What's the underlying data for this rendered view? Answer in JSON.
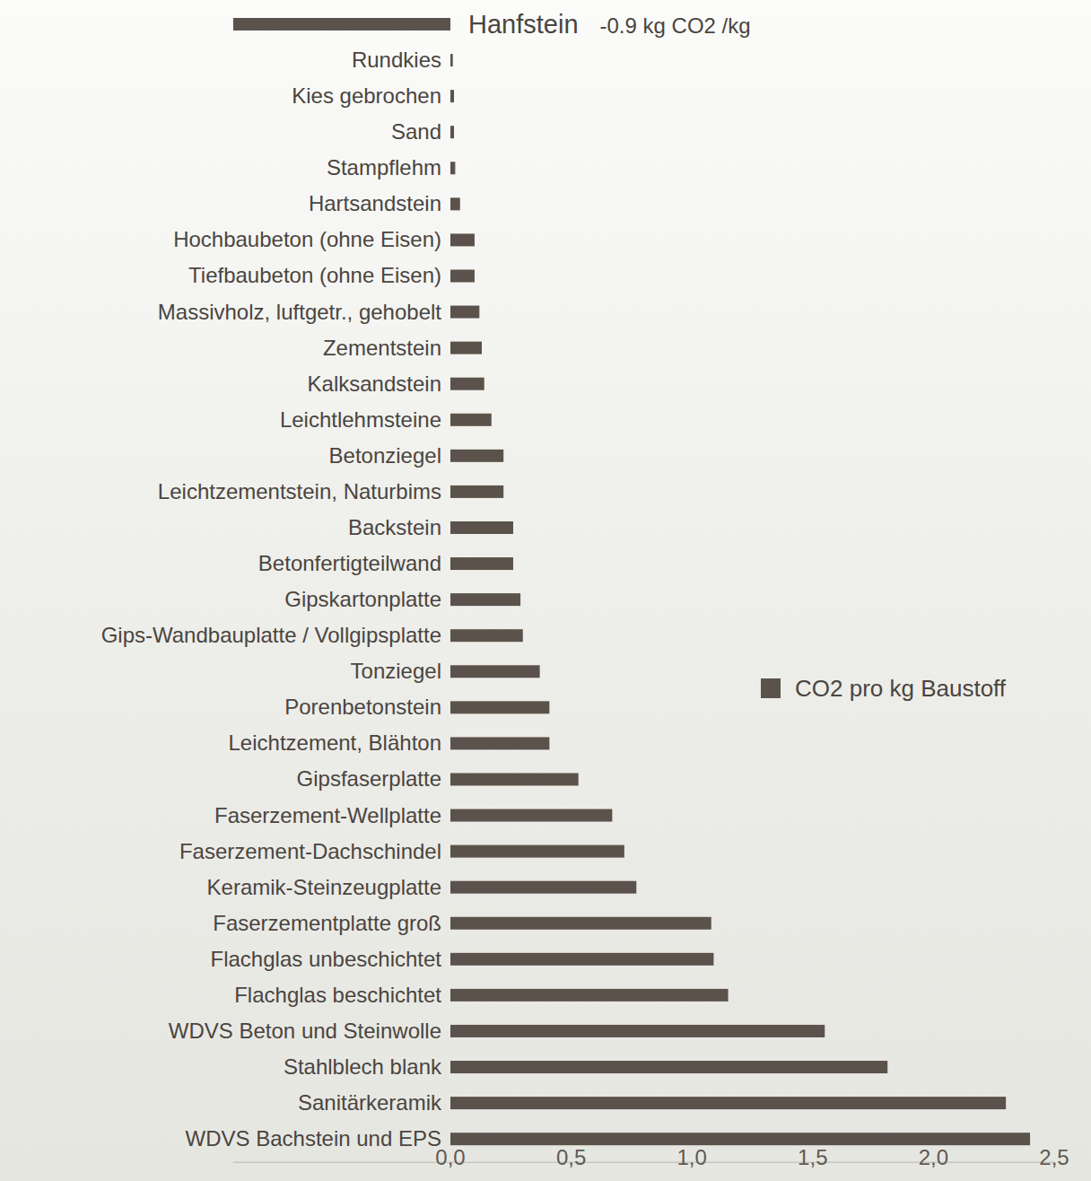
{
  "chart_data": {
    "type": "bar",
    "orientation": "horizontal",
    "categories": [
      "Hanfstein",
      "Rundkies",
      "Kies gebrochen",
      "Sand",
      "Stampflehm",
      "Hartsandstein",
      "Hochbaubeton (ohne Eisen)",
      "Tiefbaubeton (ohne Eisen)",
      "Massivholz, luftgetr., gehobelt",
      "Zementstein",
      "Kalksandstein",
      "Leichtlehmsteine",
      "Betonziegel",
      "Leichtzementstein, Naturbims",
      "Backstein",
      "Betonfertigteilwand",
      "Gipskartonplatte",
      "Gips-Wandbauplatte / Vollgipsplatte",
      "Tonziegel",
      "Porenbetonstein",
      "Leichtzement, Blähton",
      "Gipsfaserplatte",
      "Faserzement-Wellplatte",
      "Faserzement-Dachschindel",
      "Keramik-Steinzeugplatte",
      "Faserzementplatte groß",
      "Flachglas unbeschichtet",
      "Flachglas beschichtet",
      "WDVS Beton und Steinwolle",
      "Stahlblech blank",
      "Sanitärkeramik",
      "WDVS Bachstein und EPS"
    ],
    "series": [
      {
        "name": "CO2 pro kg Baustoff",
        "color": "#5b534b",
        "values": [
          -0.9,
          0.01,
          0.015,
          0.015,
          0.02,
          0.04,
          0.1,
          0.1,
          0.12,
          0.13,
          0.14,
          0.17,
          0.22,
          0.22,
          0.26,
          0.26,
          0.29,
          0.3,
          0.37,
          0.41,
          0.41,
          0.53,
          0.67,
          0.72,
          0.77,
          1.08,
          1.09,
          1.15,
          1.55,
          1.81,
          2.3,
          2.4
        ]
      }
    ],
    "annotation": "-0.9 kg CO2 /kg",
    "xlim": [
      -0.9,
      2.5
    ],
    "xticks": [
      {
        "value": 0,
        "label": "0,0"
      },
      {
        "value": 0.5,
        "label": "0,5"
      },
      {
        "value": 1,
        "label": "1,0"
      },
      {
        "value": 1.5,
        "label": "1,5"
      },
      {
        "value": 2,
        "label": "2,0"
      },
      {
        "value": 2.5,
        "label": "2,5"
      }
    ],
    "grid": false,
    "legend": "right"
  }
}
